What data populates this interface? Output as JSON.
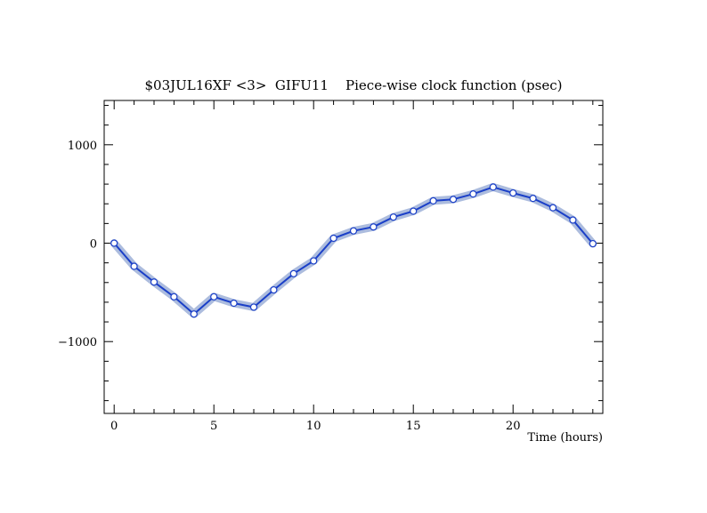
{
  "chart_data": {
    "type": "line",
    "title": "$03JUL16XF <3>  GIFU11    Piece-wise clock function (psec)",
    "xlabel": "Time (hours)",
    "ylabel": "",
    "xlim": [
      -0.5,
      24.5
    ],
    "ylim": [
      -1730,
      1450
    ],
    "x_ticks": [
      0,
      5,
      10,
      15,
      20
    ],
    "y_ticks": [
      1000,
      0,
      -1000
    ],
    "x_tick_labels": [
      "0",
      "5",
      "10",
      "15",
      "20"
    ],
    "y_tick_labels": [
      "1000",
      "0",
      "−1000"
    ],
    "grid": false,
    "series": [
      {
        "x": [
          0,
          1,
          2,
          3,
          4,
          5,
          6,
          7,
          8,
          9,
          10,
          11,
          12,
          13,
          14,
          15,
          16,
          17,
          18,
          19,
          20,
          21,
          22,
          23,
          24
        ],
        "y": [
          0,
          -235,
          -395,
          -545,
          -720,
          -545,
          -610,
          -650,
          -475,
          -310,
          -180,
          50,
          125,
          165,
          265,
          325,
          430,
          445,
          500,
          570,
          510,
          455,
          360,
          235,
          -5
        ],
        "line_color": "#1a3fc8",
        "band_color": "#9eb0d8",
        "marker": "open-circle"
      }
    ]
  }
}
